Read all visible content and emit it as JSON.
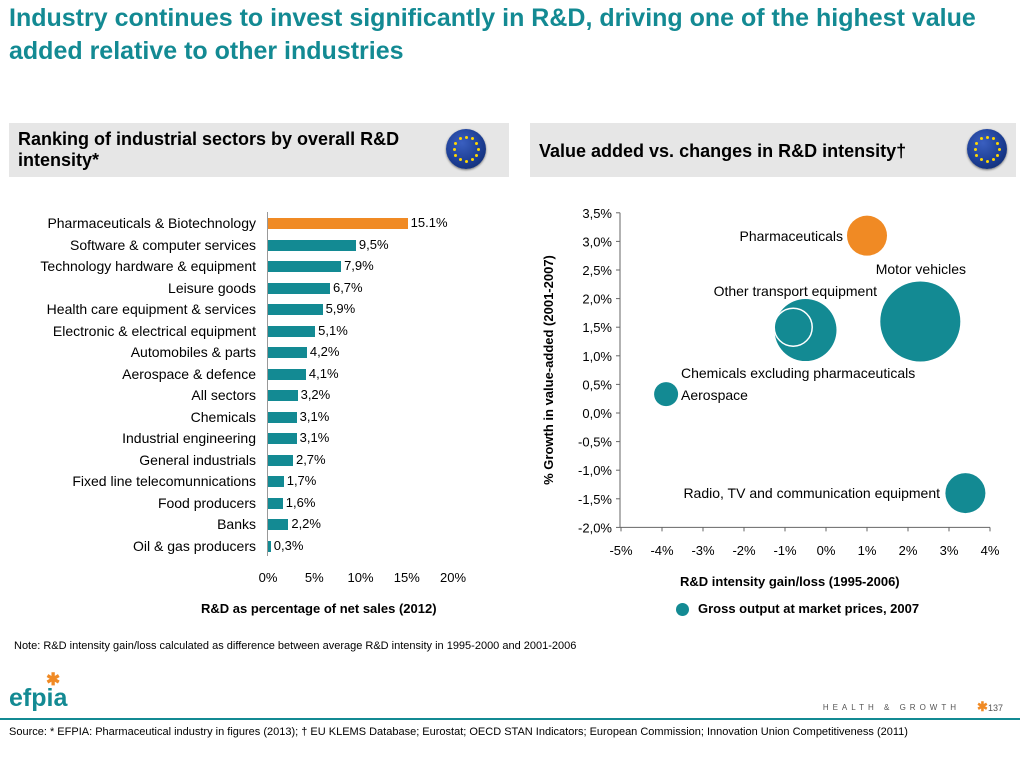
{
  "title": "Industry continues to invest significantly in R&D, driving one of the highest value added relative to other industries",
  "left_panel": {
    "title": "Ranking of industrial sectors by overall R&D intensity*"
  },
  "right_panel": {
    "title": "Value added vs. changes in R&D intensity†"
  },
  "colors": {
    "teal": "#138a93",
    "orange": "#f08a24",
    "panel_bg": "#e6e6e6"
  },
  "chart_data": [
    {
      "type": "bar",
      "orientation": "horizontal",
      "categories": [
        "Pharmaceuticals & Biotechnology",
        "Software & computer services",
        "Technology hardware & equipment",
        "Leisure goods",
        "Health care equipment & services",
        "Electronic & electrical equipment",
        "Automobiles & parts",
        "Aerospace & defence",
        "All sectors",
        "Chemicals",
        "Industrial engineering",
        "General industrials",
        "Fixed line telecomunnications",
        "Food producers",
        "Banks",
        "Oil & gas producers"
      ],
      "values": [
        15.1,
        9.5,
        7.9,
        6.7,
        5.9,
        5.1,
        4.2,
        4.1,
        3.2,
        3.1,
        3.1,
        2.7,
        1.7,
        1.6,
        2.2,
        0.3
      ],
      "value_labels": [
        "15.1%",
        "9,5%",
        "7,9%",
        "6,7%",
        "5,9%",
        "5,1%",
        "4,2%",
        "4,1%",
        "3,2%",
        "3,1%",
        "3,1%",
        "2,7%",
        "1,7%",
        "1,6%",
        "2,2%",
        "0,3%"
      ],
      "highlight_index": 0,
      "xlim": [
        0,
        20
      ],
      "xticks": [
        "0%",
        "5%",
        "10%",
        "15%",
        "20%"
      ],
      "xlabel": "R&D as percentage of net sales (2012)"
    },
    {
      "type": "scatter",
      "subtype": "bubble",
      "xlabel": "R&D intensity gain/loss (1995-2006)",
      "ylabel": "% Growth in value-added (2001-2007)",
      "xlim": [
        -5,
        4
      ],
      "ylim": [
        -2.0,
        3.5
      ],
      "xticks": [
        "-5%",
        "-4%",
        "-3%",
        "-2%",
        "-1%",
        "0%",
        "1%",
        "2%",
        "3%",
        "4%"
      ],
      "yticks": [
        "3,5%",
        "3,0%",
        "2,5%",
        "2,0%",
        "1,5%",
        "1,0%",
        "0,5%",
        "0,0%",
        "-0,5%",
        "-1,0%",
        "-1,5%",
        "-2,0%"
      ],
      "legend": "Gross output at market prices, 2007",
      "points": [
        {
          "name": "Pharmaceuticals",
          "x": 1.0,
          "y": 3.1,
          "size": 20,
          "color": "orange"
        },
        {
          "name": "Motor vehicles",
          "x": 2.3,
          "y": 1.6,
          "size": 40,
          "color": "teal"
        },
        {
          "name": "Other transport equipment",
          "x": -0.5,
          "y": 1.45,
          "size": 31,
          "color": "teal"
        },
        {
          "name": "Chemicals excluding pharmaceuticals",
          "x": -0.8,
          "y": 1.5,
          "size": 19,
          "color": "teal"
        },
        {
          "name": "Aerospace",
          "x": -3.9,
          "y": 0.33,
          "size": 12,
          "color": "teal"
        },
        {
          "name": "Radio, TV and communication equipment",
          "x": 3.4,
          "y": -1.4,
          "size": 20,
          "color": "teal"
        }
      ]
    }
  ],
  "note": "Note: R&D intensity gain/loss calculated as difference between average R&D intensity in 1995-2000 and 2001-2006",
  "footer": {
    "logo": "efpia",
    "tagline": "HEALTH & GROWTH",
    "page_number": "137",
    "source": "Source: * EFPIA:  Pharmaceutical industry in figures (2013); † EU KLEMS Database; Eurostat; OECD STAN Indicators; European Commission; Innovation Union Competitiveness (2011)"
  }
}
